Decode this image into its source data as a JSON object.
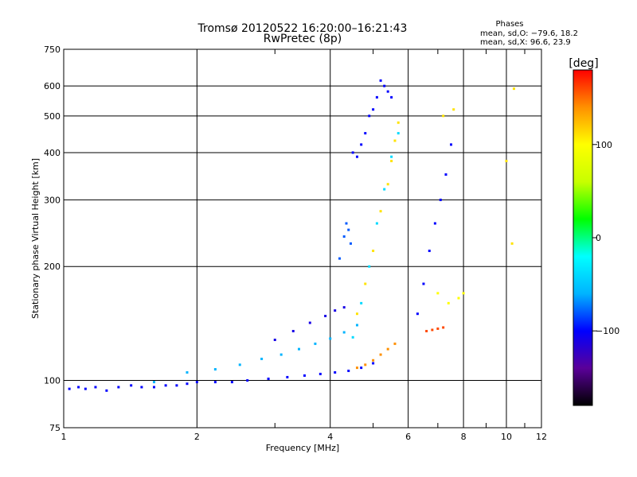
{
  "chart_data": {
    "type": "scatter",
    "title": "Tromsø 20120522 16:20:00–16:21:43",
    "subtitle": "RwPretec (8p)",
    "xlabel": "Frequency [MHz]",
    "ylabel": "Stationary phase Virtual Height [km]",
    "x_scale": "log",
    "y_scale": "log",
    "xlim": [
      1,
      12
    ],
    "ylim": [
      75,
      750
    ],
    "x_ticks": [
      1,
      2,
      4,
      6,
      8,
      10,
      12
    ],
    "y_ticks": [
      75,
      100,
      200,
      300,
      400,
      500,
      600,
      750
    ],
    "x_minor_ticks": [
      3,
      5,
      7,
      9,
      11
    ],
    "grid": true,
    "stats": {
      "heading": "Phases",
      "line1": "mean, sd,O: −79.6, 18.2",
      "line2": "mean, sd,X:  96.6, 23.9"
    },
    "colorbar": {
      "label": "[deg]",
      "range": [
        -180,
        180
      ],
      "ticks": [
        "100",
        "0",
        "−100"
      ],
      "tick_values": [
        100,
        0,
        -100
      ],
      "colors": [
        "#000000",
        "#5a0099",
        "#0000ff",
        "#00b4ff",
        "#00ffff",
        "#00ff00",
        "#c8ff00",
        "#ffff00",
        "#ff9000",
        "#ff0000"
      ]
    },
    "series": [
      {
        "values": [
          [
            1.03,
            95
          ],
          [
            1.08,
            96
          ],
          [
            1.12,
            95
          ],
          [
            1.18,
            96
          ],
          [
            1.25,
            94
          ],
          [
            1.33,
            96
          ],
          [
            1.42,
            97
          ],
          [
            1.5,
            96
          ],
          [
            1.6,
            96
          ],
          [
            1.7,
            97
          ],
          [
            1.8,
            97
          ],
          [
            1.9,
            98
          ],
          [
            2.0,
            99
          ],
          [
            2.2,
            99
          ],
          [
            2.4,
            99
          ],
          [
            2.6,
            100
          ],
          [
            2.9,
            101
          ],
          [
            3.2,
            102
          ],
          [
            3.5,
            103
          ],
          [
            3.8,
            104
          ],
          [
            4.1,
            105
          ],
          [
            4.4,
            106
          ],
          [
            4.7,
            108
          ],
          [
            5.0,
            111
          ]
        ],
        "phase": -100
      },
      {
        "values": [
          [
            1.6,
            99
          ],
          [
            1.9,
            105
          ],
          [
            2.2,
            107
          ],
          [
            2.5,
            110
          ],
          [
            2.8,
            114
          ],
          [
            3.1,
            117
          ],
          [
            3.4,
            121
          ],
          [
            3.7,
            125
          ],
          [
            4.0,
            129
          ],
          [
            4.3,
            134
          ],
          [
            4.6,
            140
          ]
        ],
        "phase": -60
      },
      {
        "values": [
          [
            3.0,
            128
          ],
          [
            3.3,
            135
          ],
          [
            3.6,
            142
          ],
          [
            3.9,
            148
          ],
          [
            4.1,
            153
          ],
          [
            4.3,
            156
          ]
        ],
        "phase": -110
      },
      {
        "values": [
          [
            4.2,
            210
          ],
          [
            4.3,
            240
          ],
          [
            4.35,
            260
          ],
          [
            4.4,
            250
          ],
          [
            4.45,
            230
          ]
        ],
        "phase": -80
      },
      {
        "values": [
          [
            4.5,
            400
          ],
          [
            4.6,
            390
          ],
          [
            4.7,
            420
          ],
          [
            4.8,
            450
          ],
          [
            4.9,
            500
          ],
          [
            5.0,
            520
          ],
          [
            5.1,
            560
          ],
          [
            5.2,
            620
          ],
          [
            5.3,
            600
          ],
          [
            5.4,
            580
          ],
          [
            5.5,
            560
          ]
        ],
        "phase": -100
      },
      {
        "values": [
          [
            4.6,
            108
          ],
          [
            4.8,
            110
          ],
          [
            5.0,
            113
          ],
          [
            5.2,
            117
          ],
          [
            5.4,
            121
          ],
          [
            5.6,
            125
          ]
        ],
        "phase": 140
      },
      {
        "values": [
          [
            4.6,
            150
          ],
          [
            4.8,
            180
          ],
          [
            5.0,
            220
          ],
          [
            5.2,
            280
          ],
          [
            5.4,
            330
          ],
          [
            5.5,
            380
          ],
          [
            5.6,
            430
          ],
          [
            5.7,
            480
          ]
        ],
        "phase": 110
      },
      {
        "values": [
          [
            4.5,
            130
          ],
          [
            4.7,
            160
          ],
          [
            4.9,
            200
          ],
          [
            5.1,
            260
          ],
          [
            5.3,
            320
          ],
          [
            5.5,
            390
          ],
          [
            5.7,
            450
          ]
        ],
        "phase": -40
      },
      {
        "values": [
          [
            6.3,
            150
          ],
          [
            6.5,
            180
          ],
          [
            6.7,
            220
          ],
          [
            6.9,
            260
          ],
          [
            7.1,
            300
          ],
          [
            7.3,
            350
          ],
          [
            7.5,
            420
          ]
        ],
        "phase": -100
      },
      {
        "values": [
          [
            6.6,
            135
          ],
          [
            6.8,
            136
          ],
          [
            7.0,
            137
          ],
          [
            7.2,
            138
          ]
        ],
        "phase": 160
      },
      {
        "values": [
          [
            7.0,
            170
          ],
          [
            7.4,
            160
          ],
          [
            7.8,
            165
          ],
          [
            8.0,
            170
          ]
        ],
        "phase": 100
      },
      {
        "values": [
          [
            10.0,
            380
          ],
          [
            10.4,
            590
          ],
          [
            10.3,
            230
          ],
          [
            7.2,
            500
          ],
          [
            7.6,
            520
          ]
        ],
        "phase": 110
      }
    ]
  }
}
